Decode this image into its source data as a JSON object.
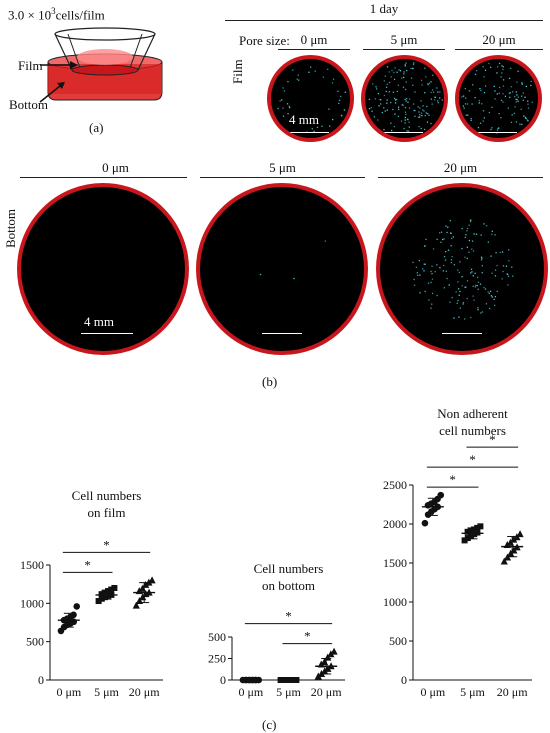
{
  "panel_a": {
    "seeding": "3.0 × 10",
    "seeding_exp": "3",
    "seeding_unit": "cells/film",
    "film_label": "Film",
    "bottom_label": "Bottom",
    "label": "(a)"
  },
  "panel_top": {
    "time": "1 day",
    "pore_label": "Pore size:",
    "pores": [
      "0 μm",
      "5 μm",
      "20 μm"
    ],
    "row_label": "Film",
    "scale": "4 mm"
  },
  "panel_b": {
    "row_label": "Bottom",
    "pores": [
      "0 μm",
      "5 μm",
      "20 μm"
    ],
    "scale": "4 mm",
    "label": "(b)"
  },
  "panel_c": {
    "label": "(c)"
  },
  "colors": {
    "dish_rim": "#c8161d",
    "cells": "#4fd6e0"
  },
  "chart_data": [
    {
      "type": "scatter",
      "title": "Cell numbers on film",
      "title_lines": [
        "Cell numbers",
        "on film"
      ],
      "categories": [
        "0 μm",
        "5 μm",
        "20 μm"
      ],
      "markers": [
        "circle",
        "square",
        "triangle"
      ],
      "ylim": [
        0,
        1500
      ],
      "yticks": [
        0,
        500,
        1000,
        1500
      ],
      "means": [
        780,
        1110,
        1140
      ],
      "sds": [
        90,
        55,
        130
      ],
      "points": [
        [
          640,
          690,
          720,
          740,
          760,
          780,
          800,
          820,
          850,
          960
        ],
        [
          1030,
          1060,
          1080,
          1100,
          1110,
          1120,
          1140,
          1160,
          1180,
          1200
        ],
        [
          970,
          1030,
          1080,
          1120,
          1140,
          1160,
          1190,
          1240,
          1270,
          1300
        ]
      ],
      "significance": [
        {
          "from": 0,
          "to": 1,
          "label": "*"
        },
        {
          "from": 0,
          "to": 2,
          "label": "*"
        }
      ]
    },
    {
      "type": "scatter",
      "title": "Cell numbers on bottom",
      "title_lines": [
        "Cell numbers",
        "on bottom"
      ],
      "categories": [
        "0 μm",
        "5 μm",
        "20 μm"
      ],
      "markers": [
        "circle",
        "square",
        "triangle"
      ],
      "ylim": [
        0,
        500
      ],
      "yticks": [
        0,
        250,
        500
      ],
      "means": [
        2,
        5,
        160
      ],
      "sds": [
        2,
        4,
        90
      ],
      "points": [
        [
          0,
          0,
          0,
          0,
          0,
          0,
          0,
          0,
          0,
          0
        ],
        [
          0,
          0,
          0,
          0,
          0,
          0,
          0,
          0,
          0,
          0
        ],
        [
          40,
          70,
          100,
          130,
          160,
          180,
          210,
          260,
          300,
          330
        ]
      ],
      "significance": [
        {
          "from": 1,
          "to": 2,
          "label": "*"
        },
        {
          "from": 0,
          "to": 2,
          "label": "*"
        }
      ]
    },
    {
      "type": "scatter",
      "title": "Non adherent cell numbers",
      "title_lines": [
        "Non adherent",
        "cell numbers"
      ],
      "categories": [
        "0 μm",
        "5 μm",
        "20 μm"
      ],
      "markers": [
        "circle",
        "square",
        "triangle"
      ],
      "ylim": [
        0,
        2500
      ],
      "yticks": [
        0,
        500,
        1000,
        1500,
        2000,
        2500
      ],
      "means": [
        2220,
        1880,
        1710
      ],
      "sds": [
        110,
        70,
        130
      ],
      "points": [
        [
          2010,
          2120,
          2160,
          2190,
          2220,
          2240,
          2260,
          2280,
          2320,
          2370
        ],
        [
          1790,
          1820,
          1850,
          1870,
          1890,
          1900,
          1910,
          1930,
          1950,
          1970
        ],
        [
          1520,
          1570,
          1620,
          1660,
          1700,
          1730,
          1760,
          1800,
          1830,
          1870
        ]
      ],
      "significance": [
        {
          "from": 0,
          "to": 1,
          "label": "*"
        },
        {
          "from": 0,
          "to": 2,
          "label": "*"
        },
        {
          "from": 1,
          "to": 2,
          "label": "*"
        }
      ]
    }
  ]
}
